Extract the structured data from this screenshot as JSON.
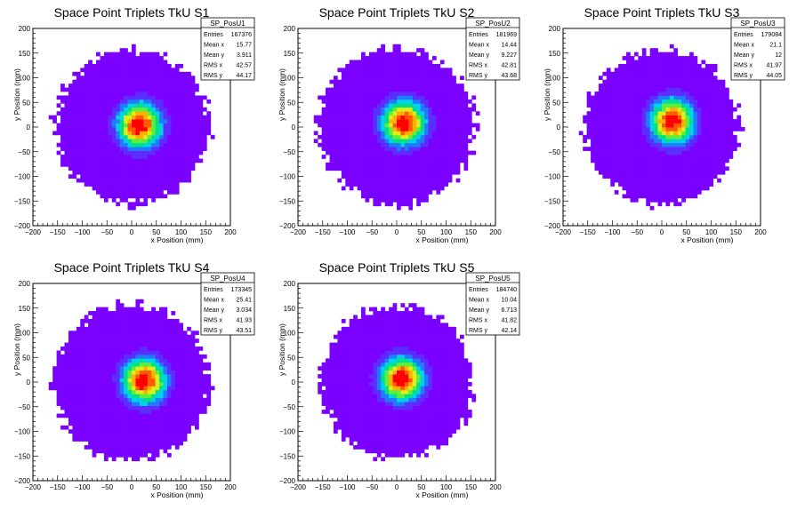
{
  "chart_data": [
    {
      "type": "heatmap",
      "title": "Space Point Triplets TkU S1",
      "xlabel": "x Position (mm)",
      "ylabel": "y Position (mm)",
      "xlim": [
        -200,
        200
      ],
      "ylim": [
        -200,
        200
      ],
      "xticks": [
        "−200",
        "−150",
        "−100",
        "−50",
        "0",
        "50",
        "100",
        "150",
        "200"
      ],
      "yticks": [
        "−200",
        "−150",
        "−100",
        "−50",
        "0",
        "50",
        "100",
        "150",
        "200"
      ],
      "stats": {
        "name": "SP_PosU1",
        "rows": [
          [
            "Entries",
            "167376"
          ],
          [
            "Mean x",
            "15.77"
          ],
          [
            "Mean y",
            "3.911"
          ],
          [
            "RMS x",
            "42.57"
          ],
          [
            "RMS y",
            "44.17"
          ]
        ]
      },
      "distribution": {
        "center_x": 15.77,
        "center_y": 3.911,
        "rms_x": 42.57,
        "rms_y": 44.17,
        "radius": 155
      },
      "colors": [
        "#7a00ff",
        "#5b2dff",
        "#1f7cff",
        "#00d2e8",
        "#00e08a",
        "#5cf03a",
        "#dcef1a",
        "#ffb000",
        "#ff5a00",
        "#ff0000"
      ]
    },
    {
      "type": "heatmap",
      "title": "Space Point Triplets TkU S2",
      "xlabel": "x Position (mm)",
      "ylabel": "y Position (mm)",
      "xlim": [
        -200,
        200
      ],
      "ylim": [
        -200,
        200
      ],
      "xticks": [
        "−200",
        "−150",
        "−100",
        "−50",
        "0",
        "50",
        "100",
        "150",
        "200"
      ],
      "yticks": [
        "−200",
        "−150",
        "−100",
        "−50",
        "0",
        "50",
        "100",
        "150",
        "200"
      ],
      "stats": {
        "name": "SP_PosU2",
        "rows": [
          [
            "Entries",
            "181969"
          ],
          [
            "Mean x",
            "14.44"
          ],
          [
            "Mean y",
            "9.227"
          ],
          [
            "RMS x",
            "42.81"
          ],
          [
            "RMS y",
            "43.68"
          ]
        ]
      },
      "distribution": {
        "center_x": 14.44,
        "center_y": 9.227,
        "rms_x": 42.81,
        "rms_y": 43.68,
        "radius": 158
      },
      "colors": [
        "#7a00ff",
        "#5b2dff",
        "#1f7cff",
        "#00d2e8",
        "#00e08a",
        "#5cf03a",
        "#dcef1a",
        "#ffb000",
        "#ff5a00",
        "#ff0000"
      ]
    },
    {
      "type": "heatmap",
      "title": "Space Point Triplets TkU S3",
      "xlabel": "x Position (mm)",
      "ylabel": "y Position (mm)",
      "xlim": [
        -200,
        200
      ],
      "ylim": [
        -200,
        200
      ],
      "xticks": [
        "−200",
        "−150",
        "−100",
        "−50",
        "0",
        "50",
        "100",
        "150",
        "200"
      ],
      "yticks": [
        "−200",
        "−150",
        "−100",
        "−50",
        "0",
        "50",
        "100",
        "150",
        "200"
      ],
      "stats": {
        "name": "SP_PosU3",
        "rows": [
          [
            "Entries",
            "179084"
          ],
          [
            "Mean x",
            "21.1"
          ],
          [
            "Mean y",
            "12"
          ],
          [
            "RMS x",
            "41.97"
          ],
          [
            "RMS y",
            "44.05"
          ]
        ]
      },
      "distribution": {
        "center_x": 21.1,
        "center_y": 12,
        "rms_x": 41.97,
        "rms_y": 44.05,
        "radius": 156
      },
      "colors": [
        "#7a00ff",
        "#5b2dff",
        "#1f7cff",
        "#00d2e8",
        "#00e08a",
        "#5cf03a",
        "#dcef1a",
        "#ffb000",
        "#ff5a00",
        "#ff0000"
      ]
    },
    {
      "type": "heatmap",
      "title": "Space Point Triplets TkU S4",
      "xlabel": "x Position (mm)",
      "ylabel": "y Position (mm)",
      "xlim": [
        -200,
        200
      ],
      "ylim": [
        -200,
        200
      ],
      "xticks": [
        "−200",
        "−150",
        "−100",
        "−50",
        "0",
        "50",
        "100",
        "150",
        "200"
      ],
      "yticks": [
        "−200",
        "−150",
        "−100",
        "−50",
        "0",
        "50",
        "100",
        "150",
        "200"
      ],
      "stats": {
        "name": "SP_PosU4",
        "rows": [
          [
            "Entries",
            "173345"
          ],
          [
            "Mean x",
            "25.41"
          ],
          [
            "Mean y",
            "3.034"
          ],
          [
            "RMS x",
            "41.93"
          ],
          [
            "RMS y",
            "43.51"
          ]
        ]
      },
      "distribution": {
        "center_x": 25.41,
        "center_y": 3.034,
        "rms_x": 41.93,
        "rms_y": 43.51,
        "radius": 158
      },
      "colors": [
        "#7a00ff",
        "#5b2dff",
        "#1f7cff",
        "#00d2e8",
        "#00e08a",
        "#5cf03a",
        "#dcef1a",
        "#ffb000",
        "#ff5a00",
        "#ff0000"
      ]
    },
    {
      "type": "heatmap",
      "title": "Space Point Triplets TkU S5",
      "xlabel": "x Position (mm)",
      "ylabel": "y Position (mm)",
      "xlim": [
        -200,
        200
      ],
      "ylim": [
        -200,
        200
      ],
      "xticks": [
        "−200",
        "−150",
        "−100",
        "−50",
        "0",
        "50",
        "100",
        "150",
        "200"
      ],
      "yticks": [
        "−200",
        "−150",
        "−100",
        "−50",
        "0",
        "50",
        "100",
        "150",
        "200"
      ],
      "stats": {
        "name": "SP_PosU5",
        "rows": [
          [
            "Entries",
            "184740"
          ],
          [
            "Mean x",
            "10.04"
          ],
          [
            "Mean y",
            "6.713"
          ],
          [
            "RMS x",
            "41.82"
          ],
          [
            "RMS y",
            "42.14"
          ]
        ]
      },
      "distribution": {
        "center_x": 10.04,
        "center_y": 6.713,
        "rms_x": 41.82,
        "rms_y": 42.14,
        "radius": 155
      },
      "colors": [
        "#7a00ff",
        "#5b2dff",
        "#1f7cff",
        "#00d2e8",
        "#00e08a",
        "#5cf03a",
        "#dcef1a",
        "#ffb000",
        "#ff5a00",
        "#ff0000"
      ]
    }
  ]
}
